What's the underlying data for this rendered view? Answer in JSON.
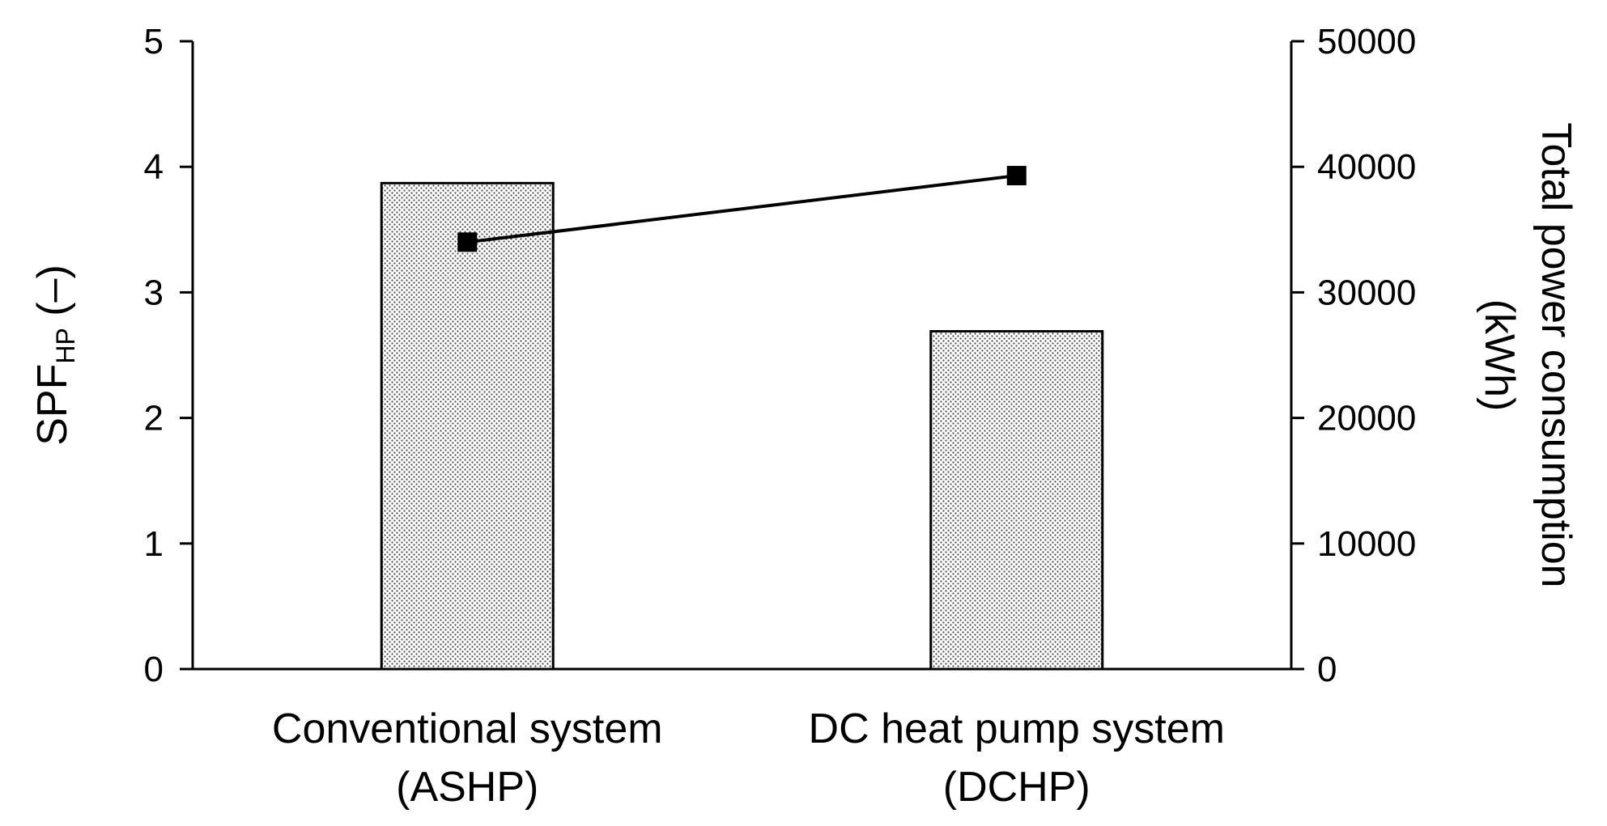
{
  "chart_data": {
    "type": "bar",
    "categories": [
      {
        "line1": "Conventional system",
        "line2": "(ASHP)"
      },
      {
        "line1": "DC heat pump system",
        "line2": "(DCHP)"
      }
    ],
    "series": [
      {
        "name": "SPF_HP",
        "type": "bar",
        "axis": "left",
        "values": [
          3.87,
          2.69
        ]
      },
      {
        "name": "Total power consumption",
        "type": "line",
        "axis": "right",
        "values": [
          34000,
          39300
        ]
      }
    ],
    "y_left": {
      "title_main": "SPF",
      "title_sub": "HP",
      "title_suffix": " (–)",
      "ylim": [
        0,
        5
      ],
      "ticks": [
        "0",
        "1",
        "2",
        "3",
        "4",
        "5"
      ]
    },
    "y_right": {
      "title_line1": "Total power consumption",
      "title_line2": "(kWh)",
      "ylim": [
        0,
        50000
      ],
      "ticks": [
        "0",
        "10000",
        "20000",
        "30000",
        "40000",
        "50000"
      ]
    },
    "grid": false,
    "colors": {
      "bar_fill": "#ffffff",
      "bar_dots": "#333333",
      "line": "#000000",
      "axis": "#000000"
    }
  }
}
